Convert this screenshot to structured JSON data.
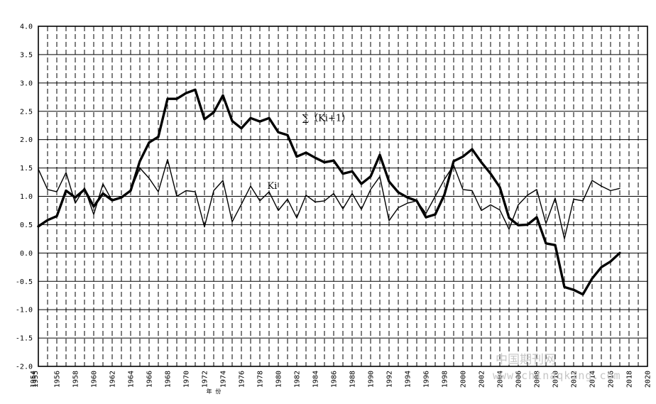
{
  "chart_data": {
    "type": "line",
    "title": "",
    "xlabel": "年 份",
    "ylabel": "",
    "xlim": [
      1954,
      2020
    ],
    "ylim": [
      -2.0,
      4.0
    ],
    "grid": true,
    "y_ticks": [
      "4.0",
      "3.5",
      "3.0",
      "2.5",
      "2.0",
      "1.5",
      "1.0",
      "0.5",
      "0.0",
      "-0.5",
      "-1.0",
      "-1.5",
      "-2.0"
    ],
    "y_tick_values": [
      4.0,
      3.5,
      3.0,
      2.5,
      2.0,
      1.5,
      1.0,
      0.5,
      0.0,
      -0.5,
      -1.0,
      -1.5,
      -2.0
    ],
    "x_ticks": [
      "1956",
      "1958",
      "1960",
      "1962",
      "1964",
      "1966",
      "1968",
      "1970",
      "1972",
      "1974",
      "1976",
      "1978",
      "1980",
      "1982",
      "1984",
      "1986",
      "1988",
      "1990",
      "1992",
      "1994",
      "1996",
      "1998",
      "2000",
      "2002",
      "2004",
      "2006",
      "2008",
      "2010",
      "2012",
      "2014",
      "2016",
      "2018",
      "2020"
    ],
    "x_tick_values": [
      1956,
      1958,
      1960,
      1962,
      1964,
      1966,
      1968,
      1970,
      1972,
      1974,
      1976,
      1978,
      1980,
      1982,
      1984,
      1986,
      1988,
      1990,
      1992,
      1994,
      1996,
      1998,
      2000,
      2002,
      2004,
      2006,
      2008,
      2010,
      2012,
      2014,
      2016,
      2018,
      2020
    ],
    "x_start_labels": [
      "1954",
      "1955"
    ],
    "annotations": [
      {
        "text": "∑（Ki+1）",
        "x": 1982.6,
        "y": 2.33
      },
      {
        "text": "Ki",
        "x": 1978.8,
        "y": 1.13
      }
    ],
    "series": [
      {
        "name": "Ki",
        "stroke": "#000000",
        "width": 1.4,
        "x": [
          1954,
          1955,
          1956,
          1957,
          1958,
          1959,
          1960,
          1961,
          1962,
          1963,
          1964,
          1965,
          1966,
          1967,
          1968,
          1969,
          1970,
          1971,
          1972,
          1973,
          1974,
          1975,
          1976,
          1977,
          1978,
          1979,
          1980,
          1981,
          1982,
          1983,
          1984,
          1985,
          1986,
          1987,
          1988,
          1989,
          1990,
          1991,
          1992,
          1993,
          1994,
          1995,
          1996,
          1997,
          1998,
          1999,
          2000,
          2001,
          2002,
          2003,
          2004,
          2005,
          2006,
          2007,
          2008,
          2009,
          2010,
          2011,
          2012,
          2013,
          2014,
          2015,
          2016,
          2017,
          2018
        ],
        "y": [
          1.48,
          1.12,
          1.08,
          1.42,
          0.88,
          1.15,
          0.68,
          1.22,
          0.92,
          0.98,
          1.1,
          1.5,
          1.32,
          1.08,
          1.65,
          1.0,
          1.1,
          1.08,
          0.46,
          1.1,
          1.28,
          0.55,
          0.86,
          1.18,
          0.92,
          1.08,
          0.75,
          0.95,
          0.62,
          1.02,
          0.9,
          0.92,
          1.05,
          0.78,
          1.05,
          0.77,
          1.12,
          1.35,
          0.57,
          0.8,
          0.88,
          0.92,
          0.7,
          1.0,
          1.3,
          1.55,
          1.12,
          1.1,
          0.75,
          0.85,
          0.76,
          0.42,
          0.85,
          1.02,
          1.12,
          0.52,
          0.97,
          0.25,
          0.95,
          0.92,
          1.28,
          1.18,
          1.1,
          1.14,
          null
        ]
      },
      {
        "name": "∑（Ki+1）",
        "stroke": "#000000",
        "width": 3.4,
        "x": [
          1954,
          1955,
          1956,
          1957,
          1958,
          1959,
          1960,
          1961,
          1962,
          1963,
          1964,
          1965,
          1966,
          1967,
          1968,
          1969,
          1970,
          1971,
          1972,
          1973,
          1974,
          1975,
          1976,
          1977,
          1978,
          1979,
          1980,
          1981,
          1982,
          1983,
          1984,
          1985,
          1986,
          1987,
          1988,
          1989,
          1990,
          1991,
          1992,
          1993,
          1994,
          1995,
          1996,
          1997,
          1998,
          1999,
          2000,
          2001,
          2002,
          2003,
          2004,
          2005,
          2006,
          2007,
          2008,
          2009,
          2010,
          2011,
          2012,
          2013,
          2014,
          2015,
          2016,
          2017,
          2018
        ],
        "y": [
          0.47,
          0.58,
          0.65,
          1.1,
          0.98,
          1.12,
          0.82,
          1.05,
          0.93,
          0.98,
          1.1,
          1.62,
          1.95,
          2.05,
          2.72,
          2.72,
          2.82,
          2.88,
          2.36,
          2.48,
          2.78,
          2.33,
          2.2,
          2.38,
          2.32,
          2.38,
          2.13,
          2.08,
          1.7,
          1.77,
          1.68,
          1.6,
          1.63,
          1.4,
          1.44,
          1.22,
          1.35,
          1.73,
          1.26,
          1.07,
          0.98,
          0.92,
          0.63,
          0.68,
          1.03,
          1.62,
          1.7,
          1.83,
          1.6,
          1.4,
          1.16,
          0.62,
          0.49,
          0.5,
          0.63,
          0.17,
          0.14,
          -0.6,
          -0.65,
          -0.73,
          -0.45,
          -0.25,
          -0.15,
          0.0,
          null
        ]
      }
    ]
  },
  "watermark": {
    "cn": "中国期刊网",
    "url": "www.chinaqking.com"
  }
}
